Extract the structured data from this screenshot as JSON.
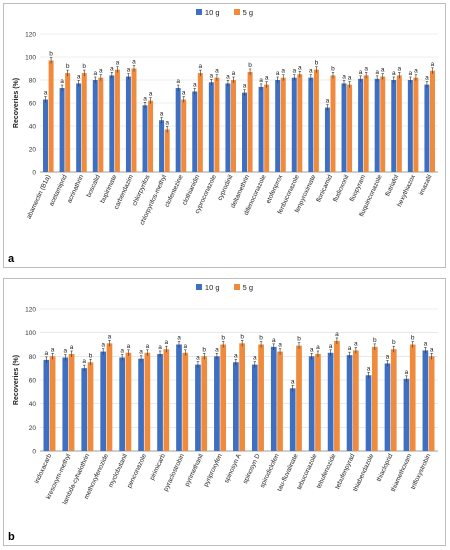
{
  "chart_data": [
    {
      "type": "bar",
      "panel_label": "a",
      "ylabel": "Recoveries (%)",
      "ylim": [
        0,
        120
      ],
      "yticks": [
        0,
        20,
        40,
        60,
        80,
        100,
        120
      ],
      "grid": true,
      "legend_position": "top-center",
      "categories": [
        "abamectin (B1a)",
        "acetamiprid",
        "acrinathrin",
        "boscalid",
        "bupirimate",
        "carbendazim",
        "chlorpyrifos",
        "chlorpyrifos-methyl",
        "clofentezine",
        "clothianidin",
        "cyproconazole",
        "cyprodinil",
        "deltamethrin",
        "difenoconazole",
        "etofenprox",
        "fenbuconazole",
        "fenpyroximate",
        "flonicamid",
        "fludioxonil",
        "fluopyram",
        "fluquinconazole",
        "flutriafol",
        "hexythiazox",
        "imazalil"
      ],
      "series": [
        {
          "name": "10 g",
          "values": [
            63,
            73,
            77,
            80,
            84,
            83,
            58,
            45,
            73,
            70,
            78,
            77,
            69,
            74,
            80,
            82,
            82,
            56,
            77,
            81,
            81,
            80,
            80,
            76
          ]
        },
        {
          "name": "5 g",
          "values": [
            97,
            86,
            86,
            82,
            89,
            90,
            62,
            37,
            63,
            86,
            82,
            80,
            87,
            76,
            82,
            85,
            89,
            84,
            76,
            84,
            83,
            84,
            82,
            88
          ]
        }
      ],
      "letters": [
        [
          "a",
          "b"
        ],
        [
          "a",
          "b"
        ],
        [
          "a",
          "b"
        ],
        [
          "a",
          "a"
        ],
        [
          "a",
          "a"
        ],
        [
          "a",
          "a"
        ],
        [
          "a",
          "a"
        ],
        [
          "a",
          "a"
        ],
        [
          "a",
          "a"
        ],
        [
          "a",
          "a"
        ],
        [
          "a",
          "a"
        ],
        [
          "a",
          "a"
        ],
        [
          "a",
          "b"
        ],
        [
          "a",
          "a"
        ],
        [
          "a",
          "a"
        ],
        [
          "a",
          "a"
        ],
        [
          "a",
          "b"
        ],
        [
          "a",
          "b"
        ],
        [
          "a",
          "a"
        ],
        [
          "a",
          "a"
        ],
        [
          "a",
          "a"
        ],
        [
          "a",
          "a"
        ],
        [
          "a",
          "a"
        ],
        [
          "a",
          "a"
        ]
      ]
    },
    {
      "type": "bar",
      "panel_label": "b",
      "ylabel": "Recoveries (%)",
      "ylim": [
        0,
        120
      ],
      "yticks": [
        0,
        20,
        40,
        60,
        80,
        100,
        120
      ],
      "grid": true,
      "legend_position": "top-center",
      "categories": [
        "indoxacarb",
        "kresoxym-methyl",
        "lambda-cyhalothrin",
        "methoxyfenozide",
        "myclobutanil",
        "penconazole",
        "pirimicarb",
        "pyraclostrobin",
        "pyrimethanil",
        "pyriproxyfen",
        "spinosyn A",
        "spinosyn D",
        "spirodiclofen",
        "tau-fluvalinate",
        "tebuconazole",
        "tebufenozide",
        "tebufenpyrad",
        "thiabendazole",
        "thiacloprid",
        "thiamethoxam",
        "trifloxystrobin"
      ],
      "series": [
        {
          "name": "10 g",
          "values": [
            77,
            79,
            70,
            84,
            79,
            78,
            82,
            90,
            73,
            80,
            75,
            73,
            88,
            53,
            80,
            83,
            81,
            64,
            74,
            61,
            85
          ]
        },
        {
          "name": "5 g",
          "values": [
            80,
            82,
            75,
            91,
            83,
            83,
            86,
            83,
            80,
            90,
            91,
            90,
            84,
            89,
            82,
            93,
            85,
            88,
            86,
            90,
            80
          ]
        }
      ],
      "letters": [
        [
          "a",
          "a"
        ],
        [
          "a",
          "a"
        ],
        [
          "a",
          "b"
        ],
        [
          "a",
          "a"
        ],
        [
          "a",
          "a"
        ],
        [
          "a",
          "a"
        ],
        [
          "a",
          "a"
        ],
        [
          "a",
          "a"
        ],
        [
          "a",
          "b"
        ],
        [
          "a",
          "b"
        ],
        [
          "a",
          "b"
        ],
        [
          "a",
          "b"
        ],
        [
          "a",
          "a"
        ],
        [
          "a",
          "b"
        ],
        [
          "a",
          "a"
        ],
        [
          "a",
          "a"
        ],
        [
          "a",
          "a"
        ],
        [
          "a",
          "b"
        ],
        [
          "a",
          "b"
        ],
        [
          "a",
          "b"
        ],
        [
          "a",
          "a"
        ]
      ]
    }
  ],
  "colors": {
    "series_10g": "#3f6fc0",
    "series_5g": "#f08a3c",
    "grid": "#d9d9d9",
    "axis": "#7f7f7f"
  }
}
